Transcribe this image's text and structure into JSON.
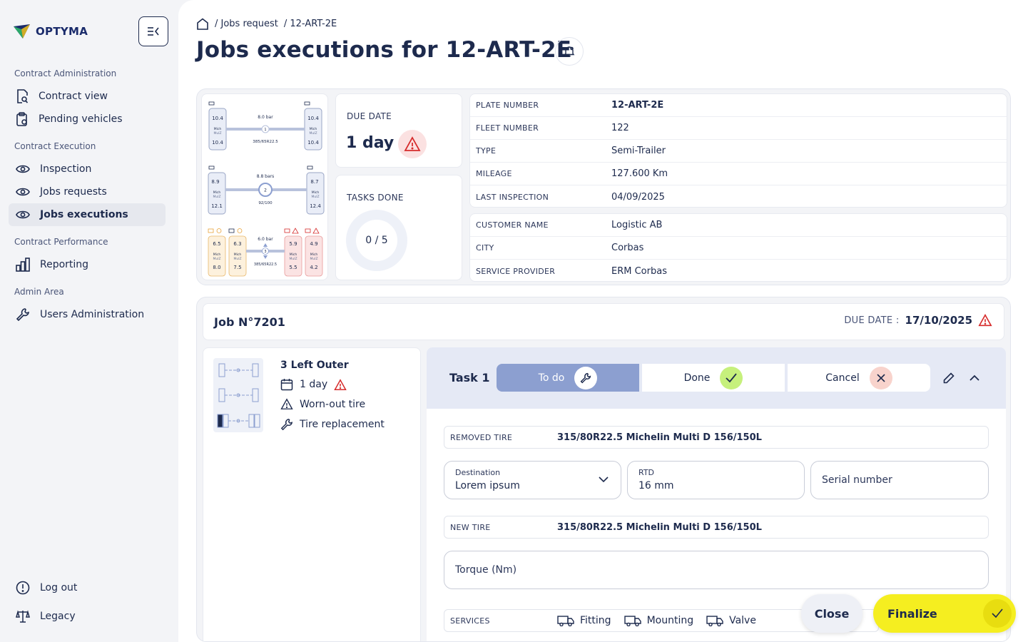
{
  "brand": {
    "name": "OPTYMA"
  },
  "sidebar": {
    "sections": [
      {
        "title": "Contract Administration",
        "items": [
          {
            "label": "Contract view",
            "icon": "file-search-icon"
          },
          {
            "label": "Pending vehicles",
            "icon": "clipboard-clock-icon"
          }
        ]
      },
      {
        "title": "Contract Execution",
        "items": [
          {
            "label": "Inspection",
            "icon": "eye-icon"
          },
          {
            "label": "Jobs requests",
            "icon": "eye-icon"
          },
          {
            "label": "Jobs executions",
            "icon": "eye-icon",
            "active": true
          }
        ]
      },
      {
        "title": "Contract Performance",
        "items": [
          {
            "label": "Reporting",
            "icon": "bar-chart-icon"
          }
        ]
      },
      {
        "title": "Admin Area",
        "items": [
          {
            "label": "Users Administration",
            "icon": "wrench-icon"
          }
        ]
      }
    ],
    "footer": [
      {
        "label": "Log out",
        "icon": "info-circle-icon"
      },
      {
        "label": "Legacy",
        "icon": "scale-icon"
      }
    ]
  },
  "breadcrumb": {
    "parent": "/ Jobs request",
    "current": "/ 12-ART-2E"
  },
  "page_title": "Jobs executions for 12-ART-2E",
  "tire_diagram": {
    "axle1": {
      "pressure": "8.0 bar",
      "axle_no": "1",
      "size": "385/65R22.5",
      "left": [
        "10.4",
        "Mich",
        "MulZ",
        "10.4"
      ],
      "right": [
        "10.4",
        "Mich",
        "MulZ",
        "10.4"
      ]
    },
    "axle2": {
      "pressure": "8.8 bars",
      "axle_no": "2",
      "size": "92/100",
      "left": [
        "8.9",
        "Mich",
        "MulZ",
        "12.1"
      ],
      "right": [
        "8.7",
        "Mich",
        "MulZ",
        "12.4"
      ]
    },
    "axle3": {
      "pressure": "6.0 bar",
      "axle_no": "3",
      "size": "385/65R22.5",
      "tires": [
        [
          "6.5",
          "Mich",
          "MulZ",
          "8.0"
        ],
        [
          "6.3",
          "Mich",
          "MulZ",
          "7.5"
        ],
        [
          "5.9",
          "Mich",
          "MulZ",
          "5.5"
        ],
        [
          "4.9",
          "Mich",
          "MulZ",
          "4.2"
        ]
      ]
    }
  },
  "due_date_card": {
    "label": "DUE DATE",
    "value": "1 day"
  },
  "tasks_done_card": {
    "label": "TASKS DONE",
    "value": "0 / 5",
    "progress": 0
  },
  "vehicle_info": [
    {
      "key": "PLATE NUMBER",
      "value": "12-ART-2E"
    },
    {
      "key": "FLEET NUMBER",
      "value": "122"
    },
    {
      "key": "TYPE",
      "value": "Semi-Trailer"
    },
    {
      "key": "MILEAGE",
      "value": "127.600 Km"
    },
    {
      "key": "LAST INSPECTION",
      "value": "04/09/2025"
    }
  ],
  "customer_info": [
    {
      "key": "CUSTOMER NAME",
      "value": "Logistic AB"
    },
    {
      "key": "CITY",
      "value": "Corbas"
    },
    {
      "key": "SERVICE PROVIDER",
      "value": "ERM Corbas"
    }
  ],
  "job": {
    "title": "Job N°7201",
    "due_label": "DUE DATE :",
    "due_value": "17/10/2025",
    "position": "3 Left Outer",
    "duration": "1 day",
    "reason": "Worn-out tire",
    "action": "Tire replacement"
  },
  "task": {
    "title": "Task 1",
    "status_todo": "To do",
    "status_done": "Done",
    "status_cancel": "Cancel",
    "removed_tire_label": "REMOVED TIRE",
    "removed_tire_value": "315/80R22.5 Michelin Multi D 156/150L",
    "destination_label": "Destination",
    "destination_value": "Lorem ipsum",
    "rtd_label": "RTD",
    "rtd_value": "16 mm",
    "serial_placeholder": "Serial number",
    "new_tire_label": "NEW TIRE",
    "new_tire_value": "315/80R22.5 Michelin Multi D 156/150L",
    "torque_placeholder": "Torque (Nm)",
    "services_label": "SERVICES",
    "services": [
      "Fitting",
      "Mounting",
      "Valve"
    ]
  },
  "actions": {
    "close": "Close",
    "finalize": "Finalize"
  },
  "colors": {
    "navy": "#1d2a4d",
    "accent_blue": "#8c9fd0",
    "task_header": "#e5e9f5",
    "done_green": "#c6f07c",
    "cancel_red": "#f8d3cc",
    "warning_red": "#d62b2b",
    "finalize_yellow": "#f5ee20"
  }
}
